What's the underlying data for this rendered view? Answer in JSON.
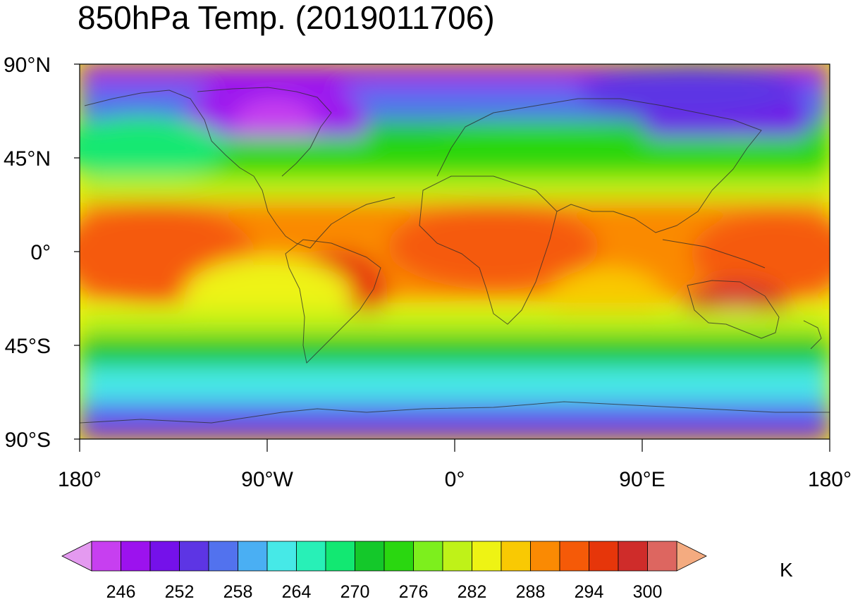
{
  "map": {
    "title": "850hPa Temp. (2019011706)",
    "lat_ticks": [
      {
        "value": 90,
        "label": "90°N"
      },
      {
        "value": 45,
        "label": "45°N"
      },
      {
        "value": 0,
        "label": "0°"
      },
      {
        "value": -45,
        "label": "45°S"
      },
      {
        "value": -90,
        "label": "90°S"
      }
    ],
    "lon_ticks": [
      {
        "value": -180,
        "label": "180°"
      },
      {
        "value": -90,
        "label": "90°W"
      },
      {
        "value": 0,
        "label": "0°"
      },
      {
        "value": 90,
        "label": "90°E"
      },
      {
        "value": 180,
        "label": "180°"
      }
    ],
    "lon_range": [
      -180,
      180
    ],
    "lat_range": [
      -90,
      90
    ],
    "projection": "cylindrical-equidistant"
  },
  "colorbar": {
    "units": "K",
    "levels_min": 243,
    "level_step": 3,
    "low_color": "#e49af0",
    "high_color": "#f4ab80",
    "colors": [
      "#c73ff0",
      "#9c12ee",
      "#7511ea",
      "#5d35e4",
      "#5272ee",
      "#4aaff3",
      "#46e9e7",
      "#28f0b7",
      "#12e872",
      "#14c82a",
      "#2ad710",
      "#7def1d",
      "#bff218",
      "#eef314",
      "#f9c903",
      "#fa8a03",
      "#f55a08",
      "#e6360a",
      "#cf2c2a",
      "#dd6660"
    ],
    "tick_labels": [
      "246",
      "252",
      "258",
      "264",
      "270",
      "276",
      "282",
      "288",
      "294",
      "300"
    ]
  }
}
